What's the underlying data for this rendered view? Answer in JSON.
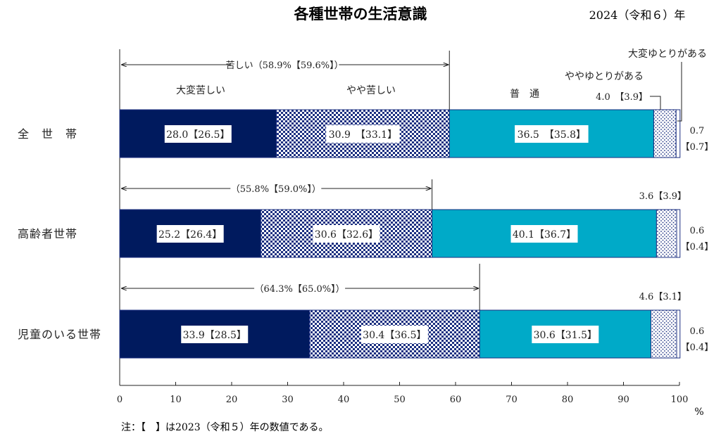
{
  "chart_data": {
    "type": "bar",
    "orientation": "horizontal",
    "stacked": true,
    "title": "各種世帯の生活意識",
    "year_note": "2024（令和６）年",
    "footnote": "注：【　】は2023（令和５）年の数値である。",
    "x_unit": "%",
    "xlim": [
      0,
      100
    ],
    "x_ticks": [
      "0",
      "10",
      "20",
      "30",
      "40",
      "50",
      "60",
      "70",
      "80",
      "90",
      "100"
    ],
    "grid": false,
    "series": [
      {
        "name": "大変苦しい",
        "color": "#001a5e",
        "pattern": "solid"
      },
      {
        "name": "やや苦しい",
        "color": "#1b2f80",
        "pattern": "checker"
      },
      {
        "name": "普　通",
        "color": "#00aac8",
        "pattern": "solid"
      },
      {
        "name": "ややゆとりがある",
        "color": "#1b2f80",
        "pattern": "dots"
      },
      {
        "name": "大変ゆとりがある",
        "color": "#ffffff",
        "pattern": "solid"
      }
    ],
    "categories": [
      {
        "label": "全　世　帯",
        "values": [
          28.0,
          30.9,
          36.5,
          4.0,
          0.7
        ],
        "prev": [
          26.5,
          33.1,
          35.8,
          3.9,
          0.7
        ],
        "seg_labels": [
          "28.0【26.5】",
          "30.9　【33.1】",
          "36.5　【35.8】"
        ],
        "small_label": "4.0　【3.9】",
        "right_top": "0.7",
        "right_bottom": "【0.7】",
        "hard_label": "苦しい（58.9%【59.6%】）"
      },
      {
        "label": "高齢者世帯",
        "values": [
          25.2,
          30.6,
          40.1,
          3.6,
          0.6
        ],
        "prev": [
          26.4,
          32.6,
          36.7,
          3.9,
          0.4
        ],
        "seg_labels": [
          "25.2【26.4】",
          "30.6【32.6】",
          "40.1【36.7】"
        ],
        "small_label": "3.6【3.9】",
        "right_top": "0.6",
        "right_bottom": "【0.4】",
        "hard_label": "（55.8%【59.0%】）"
      },
      {
        "label": "児童のいる世帯",
        "values": [
          33.9,
          30.4,
          30.6,
          4.6,
          0.6
        ],
        "prev": [
          28.5,
          36.5,
          31.5,
          3.1,
          0.4
        ],
        "seg_labels": [
          "33.9【28.5】",
          "30.4【36.5】",
          "30.6【31.5】"
        ],
        "small_label": "4.6【3.1】",
        "right_top": "0.6",
        "right_bottom": "【0.4】",
        "hard_label": "（64.3%【65.0%】）"
      }
    ],
    "header_labels": {
      "very_hard": "大変苦しい",
      "somewhat_hard": "やや苦しい",
      "normal": "普　通",
      "somewhat_comfortable": "ややゆとりがある",
      "very_comfortable": "大変ゆとりがある"
    }
  }
}
